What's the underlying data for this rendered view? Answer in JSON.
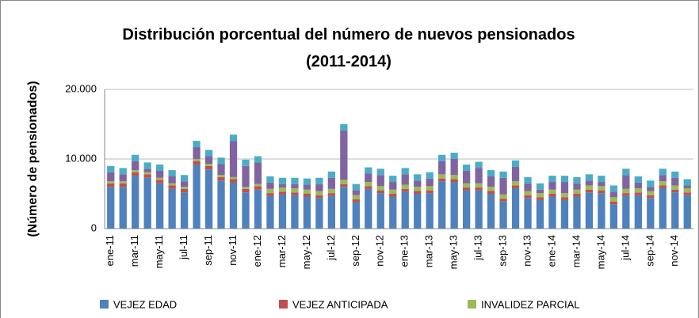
{
  "chart_data": {
    "type": "stacked-bar",
    "title": [
      "Distribución porcentual del número de nuevos pensionados",
      "(2011-2014)"
    ],
    "y_label": "(Número de pensionados)",
    "categories": [
      "ene-11",
      null,
      "mar-11",
      null,
      "may-11",
      null,
      "jul-11",
      null,
      "sep-11",
      null,
      "nov-11",
      null,
      "ene-12",
      null,
      "mar-12",
      null,
      "may-12",
      null,
      "jul-12",
      null,
      "sep-12",
      null,
      "nov-12",
      null,
      "ene-13",
      null,
      "mar-13",
      null,
      "may-13",
      null,
      "jul-13",
      null,
      "sep-13",
      null,
      "nov-13",
      null,
      "ene-14",
      null,
      "mar-14",
      null,
      "may-14",
      null,
      "jul-14",
      null,
      "sep-14",
      null,
      "nov-14",
      null
    ],
    "series": [
      {
        "name": "VEJEZ EDAD",
        "color": "#4f81bd",
        "values": [
          6000,
          6000,
          7600,
          7300,
          6500,
          5700,
          5200,
          9200,
          8500,
          6900,
          6600,
          5200,
          5600,
          4700,
          4900,
          4800,
          4600,
          4400,
          4700,
          6000,
          3800,
          5700,
          5100,
          4600,
          5300,
          5000,
          5100,
          6800,
          6700,
          5500,
          5500,
          5000,
          3900,
          5800,
          4400,
          4100,
          4600,
          4100,
          4600,
          5200,
          5100,
          3500,
          4700,
          4800,
          4400,
          5800,
          5200,
          4800
        ]
      },
      {
        "name": "VEJEZ ANTICIPADA",
        "color": "#c0504d",
        "values": [
          500,
          500,
          500,
          500,
          500,
          500,
          500,
          500,
          500,
          500,
          500,
          500,
          500,
          400,
          400,
          400,
          400,
          400,
          400,
          400,
          400,
          400,
          400,
          400,
          400,
          400,
          400,
          400,
          400,
          400,
          400,
          400,
          400,
          400,
          400,
          400,
          400,
          400,
          400,
          400,
          400,
          400,
          400,
          400,
          400,
          400,
          400,
          400
        ]
      },
      {
        "name": "INVALIDEZ PARCIAL",
        "color": "#9bbb59",
        "values": [
          300,
          300,
          300,
          300,
          300,
          300,
          300,
          300,
          300,
          300,
          300,
          300,
          300,
          600,
          600,
          600,
          600,
          600,
          600,
          600,
          600,
          600,
          600,
          600,
          600,
          600,
          600,
          600,
          600,
          600,
          600,
          600,
          600,
          600,
          600,
          600,
          600,
          600,
          600,
          600,
          600,
          600,
          600,
          600,
          600,
          600,
          600,
          600
        ]
      },
      {
        "name": null,
        "color": "#8064a2",
        "values": [
          1300,
          1000,
          1300,
          500,
          1000,
          1000,
          800,
          1700,
          1100,
          1600,
          5200,
          3000,
          3100,
          900,
          500,
          600,
          700,
          1000,
          1600,
          7100,
          700,
          1200,
          1600,
          1100,
          1500,
          900,
          1100,
          1900,
          2300,
          1800,
          2200,
          1500,
          2400,
          2100,
          1100,
          500,
          1100,
          1600,
          900,
          700,
          600,
          800,
          2000,
          800,
          600,
          900,
          1100,
          400
        ]
      },
      {
        "name": null,
        "color": "#4bacc6",
        "values": [
          900,
          900,
          900,
          900,
          900,
          900,
          900,
          900,
          900,
          900,
          900,
          900,
          900,
          900,
          900,
          900,
          900,
          900,
          900,
          900,
          900,
          900,
          900,
          900,
          900,
          900,
          900,
          900,
          900,
          900,
          900,
          900,
          900,
          900,
          900,
          900,
          900,
          900,
          900,
          900,
          900,
          900,
          900,
          900,
          900,
          900,
          900,
          900
        ]
      }
    ],
    "ylim": [
      0,
      20000
    ],
    "yticks": [
      0,
      {
        "value": 10000,
        "label": "10.000"
      },
      {
        "value": 20000,
        "label": "20.000"
      }
    ],
    "grid": true
  }
}
